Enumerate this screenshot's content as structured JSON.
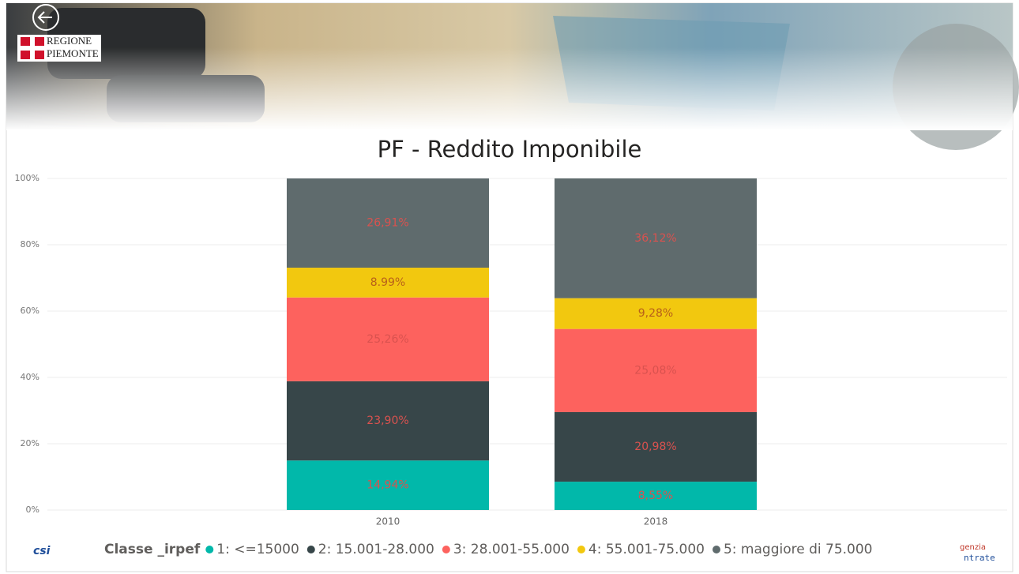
{
  "header": {
    "logo_text": [
      "REGIONE",
      "PIEMONTE"
    ]
  },
  "footer": {
    "left_logo": "csi",
    "right_logo": [
      "genzia",
      "ntrate"
    ]
  },
  "chart_data": {
    "type": "bar",
    "stacked": true,
    "title": "PF - Reddito Imponibile",
    "categories": [
      "2010",
      "2018"
    ],
    "legend_title": "Classe _irpef",
    "series": [
      {
        "name": "1: <=15000",
        "color": "#01B8AA",
        "values": [
          14.94,
          8.55
        ],
        "value_labels": [
          "14,94%",
          "8,55%"
        ]
      },
      {
        "name": "2: 15.001-28.000",
        "color": "#374649",
        "values": [
          23.9,
          20.98
        ],
        "value_labels": [
          "23,90%",
          "20,98%"
        ]
      },
      {
        "name": "3: 28.001-55.000",
        "color": "#FD625E",
        "values": [
          25.26,
          25.08
        ],
        "value_labels": [
          "25,26%",
          "25,08%"
        ]
      },
      {
        "name": "4: 55.001-75.000",
        "color": "#F2C80F",
        "values": [
          8.99,
          9.28
        ],
        "value_labels": [
          "8.99%",
          "9,28%"
        ]
      },
      {
        "name": "5:  maggiore di 75.000",
        "color": "#5F6B6D",
        "values": [
          26.91,
          36.12
        ],
        "value_labels": [
          "26,91%",
          "36,12%"
        ]
      }
    ],
    "ylim": [
      0,
      100
    ],
    "yticks": [
      {
        "value": 0,
        "label": "0%"
      },
      {
        "value": 20,
        "label": "20%"
      },
      {
        "value": 40,
        "label": "40%"
      },
      {
        "value": 60,
        "label": "60%"
      },
      {
        "value": 80,
        "label": "80%"
      },
      {
        "value": 100,
        "label": "100%"
      }
    ],
    "grid": true
  }
}
